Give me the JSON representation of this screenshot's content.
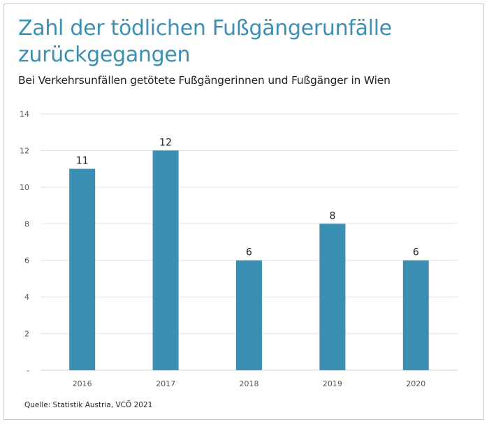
{
  "title": "Zahl der tödlichen Fußgängerunfälle zurückgegangen",
  "subtitle": "Bei Verkehrsunfällen getötete Fußgängerinnen und Fußgänger in Wien",
  "source": "Quelle: Statistik Austria, VCÖ 2021",
  "colors": {
    "bar": "#3a8fb2",
    "title": "#3a8fb2",
    "grid": "#e3e3e3"
  },
  "chart_data": {
    "type": "bar",
    "categories": [
      "2016",
      "2017",
      "2018",
      "2019",
      "2020"
    ],
    "values": [
      11,
      12,
      6,
      8,
      6
    ],
    "data_labels": [
      "11",
      "12",
      "6",
      "8",
      "6"
    ],
    "y_ticks": [
      "-",
      "2",
      "4",
      "6",
      "8",
      "10",
      "12",
      "14"
    ],
    "ylim": [
      0,
      14
    ],
    "grid": true,
    "legend": "none"
  }
}
